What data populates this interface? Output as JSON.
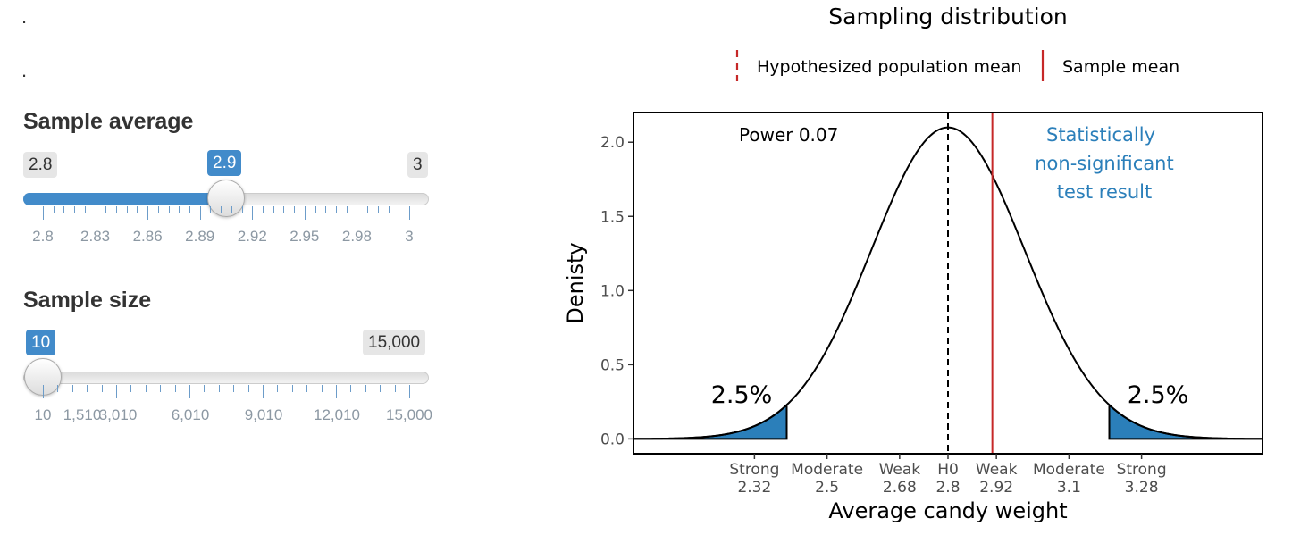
{
  "decorations": {
    "dot1": ".",
    "dot2": "."
  },
  "controls": {
    "sample_average": {
      "label": "Sample average",
      "min_label": "2.8",
      "max_label": "3",
      "value_label": "2.9",
      "min": 2.8,
      "max": 3.0,
      "value": 2.9,
      "tick_labels": [
        "2.8",
        "2.83",
        "2.86",
        "2.89",
        "2.92",
        "2.95",
        "2.98",
        "3"
      ]
    },
    "sample_size": {
      "label": "Sample size",
      "min_label": "10",
      "max_label": "15,000",
      "value_label": "10",
      "min": 10,
      "max": 15000,
      "value": 10,
      "tick_labels": [
        "10",
        "1,510",
        "3,010",
        "6,010",
        "9,010",
        "12,010",
        "15,000"
      ]
    }
  },
  "colors": {
    "accent": "#428bca",
    "tail_fill": "#2b7fba",
    "sample_mean_line": "#c62828",
    "annotation_blue": "#2b7fba"
  },
  "chart_data": {
    "type": "area",
    "title": "Sampling distribution",
    "xlabel": "Average candy weight",
    "ylabel": "Denisty",
    "legend": [
      {
        "name": "Hypothesized population mean",
        "style": "dashed",
        "color": "#c62828"
      },
      {
        "name": "Sample mean",
        "style": "solid",
        "color": "#c62828"
      }
    ],
    "legend_position": "top",
    "distribution": {
      "mean": 2.8,
      "sd": 0.19
    },
    "xlim": [
      2.02,
      3.58
    ],
    "ylim": [
      -0.1,
      2.2
    ],
    "y_ticks": [
      "0.0",
      "0.5",
      "1.0",
      "1.5",
      "2.0"
    ],
    "x_ticks": [
      {
        "x": 2.32,
        "line1": "Strong",
        "line2": "2.32"
      },
      {
        "x": 2.5,
        "line1": "Moderate",
        "line2": "2.5"
      },
      {
        "x": 2.68,
        "line1": "Weak",
        "line2": "2.68"
      },
      {
        "x": 2.8,
        "line1": "H0",
        "line2": "2.8"
      },
      {
        "x": 2.92,
        "line1": "Weak",
        "line2": "2.92"
      },
      {
        "x": 3.1,
        "line1": "Moderate",
        "line2": "3.1"
      },
      {
        "x": 3.28,
        "line1": "Strong",
        "line2": "3.28"
      }
    ],
    "h0_line_x": 2.8,
    "sample_mean_x": 2.91,
    "tails": {
      "lower_cut": 2.4,
      "upper_cut": 3.2,
      "label": "2.5%"
    },
    "annotations": {
      "power": "Power 0.07",
      "result_line1": "Statistically",
      "result_line2": "non-significant",
      "result_line3": "test result"
    }
  }
}
